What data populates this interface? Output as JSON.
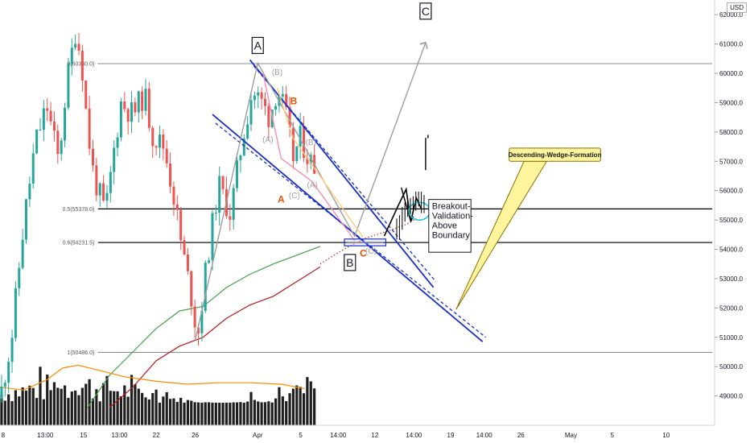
{
  "currency": "USD",
  "chart_data": {
    "type": "candlestick",
    "y_axis": {
      "side": "right",
      "ylim": [
        48000,
        62500
      ],
      "ticks": [
        "49000.0",
        "50000.0",
        "51000.0",
        "52000.0",
        "53000.0",
        "54000.0",
        "55000.0",
        "56000.0",
        "57000.0",
        "58000.0",
        "59000.0",
        "60000.0",
        "61000.0",
        "62000.0"
      ]
    },
    "x_axis": {
      "ticks": [
        {
          "label": "8",
          "t": 0.4
        },
        {
          "label": "13:00",
          "t": 5.8
        },
        {
          "label": "15",
          "t": 10.7
        },
        {
          "label": "13:00",
          "t": 15.3
        },
        {
          "label": "22",
          "t": 20.0
        },
        {
          "label": "26",
          "t": 25.0
        },
        {
          "label": "Apr",
          "t": 33.0
        },
        {
          "label": "5",
          "t": 38.5
        },
        {
          "label": "14:00",
          "t": 43.3
        },
        {
          "label": "12",
          "t": 48.0
        },
        {
          "label": "14:00",
          "t": 53.0
        },
        {
          "label": "19",
          "t": 57.7
        },
        {
          "label": "14:00",
          "t": 62.0
        },
        {
          "label": "26",
          "t": 66.7
        },
        {
          "label": "May",
          "t": 73.1
        },
        {
          "label": "5",
          "t": 78.4
        },
        {
          "label": "10",
          "t": 85.3
        }
      ]
    },
    "volume_colors": {
      "candle_up": "#26a69a",
      "candle_down": "#ef5350",
      "volume": "#1e1e1e"
    },
    "fib_levels": [
      {
        "label": "0(60330.0)",
        "value": 60330
      },
      {
        "label": "0.5(55378.0)",
        "value": 55378
      },
      {
        "label": "0.6(54231.5)",
        "value": 54231.5
      },
      {
        "label": "1(50486.0)",
        "value": 50486
      }
    ],
    "horizontal_lines": [
      55378,
      54231.5
    ],
    "wedge": {
      "upper": [
        [
          32.0,
          60460
        ],
        [
          55.5,
          52700
        ]
      ],
      "upper_dashed": [
        [
          32.5,
          60250
        ],
        [
          55.8,
          52900
        ]
      ],
      "lower": [
        [
          27.2,
          58600
        ],
        [
          61.8,
          50850
        ]
      ],
      "lower_dashed": [
        [
          27.6,
          58300
        ],
        [
          62.2,
          51000
        ]
      ],
      "color": "#1a2fc9"
    },
    "moving_averages": [
      {
        "color": "#43a047",
        "points": [
          [
            11.2,
            48600
          ],
          [
            14,
            49700
          ],
          [
            17,
            50500
          ],
          [
            20,
            51300
          ],
          [
            23,
            51900
          ],
          [
            26,
            52050
          ],
          [
            29,
            52700
          ],
          [
            32,
            53150
          ],
          [
            35,
            53500
          ],
          [
            38,
            53800
          ],
          [
            41,
            54100
          ]
        ]
      },
      {
        "color": "#b71c1c",
        "points": [
          [
            14,
            48600
          ],
          [
            17,
            49300
          ],
          [
            20,
            50200
          ],
          [
            23,
            50700
          ],
          [
            26,
            51000
          ],
          [
            29,
            51650
          ],
          [
            32,
            52100
          ],
          [
            35,
            52400
          ],
          [
            38,
            52900
          ],
          [
            41,
            53400
          ]
        ]
      },
      {
        "color": "#fb8c00",
        "points": [
          [
            0,
            49300
          ],
          [
            3,
            49200
          ],
          [
            6,
            49550
          ],
          [
            8,
            49950
          ],
          [
            10,
            50050
          ],
          [
            13,
            49850
          ],
          [
            16,
            49650
          ],
          [
            20,
            49500
          ],
          [
            24,
            49400
          ],
          [
            28,
            49450
          ],
          [
            32,
            49450
          ],
          [
            36,
            49400
          ],
          [
            39,
            49250
          ]
        ]
      }
    ],
    "projection_dotted": {
      "color": "#c62828",
      "points": [
        [
          41,
          53500
        ],
        [
          44,
          54000
        ],
        [
          47,
          54400
        ],
        [
          50,
          54650
        ],
        [
          52,
          54850
        ],
        [
          53.3,
          55050
        ]
      ]
    },
    "abc_lines": [
      {
        "color": "#9e9e9e",
        "points": [
          [
            25.0,
            50900
          ],
          [
            33.0,
            60350
          ],
          [
            45.4,
            54450
          ],
          [
            54.5,
            61050
          ]
        ]
      },
      {
        "color": "#000000",
        "points": [
          [
            49.2,
            54450
          ],
          [
            51.0,
            55500
          ],
          [
            52.0,
            56050
          ],
          [
            52.6,
            54950
          ],
          [
            53.3,
            55750
          ],
          [
            54.0,
            55350
          ]
        ]
      },
      {
        "color": "#f48fb1",
        "points": [
          [
            33.6,
            60100
          ],
          [
            36.0,
            57100
          ],
          [
            40.0,
            56300
          ],
          [
            45.4,
            54300
          ]
        ]
      },
      {
        "color": "#ffcc80",
        "points": [
          [
            35.5,
            59500
          ],
          [
            37.5,
            57800
          ],
          [
            41.5,
            56300
          ],
          [
            46.5,
            54400
          ]
        ]
      }
    ],
    "final_spikes": [
      [
        54.5,
        56700,
        57800
      ]
    ],
    "annotations": {
      "box_A": {
        "text": "A",
        "t": 33.0,
        "value": 60950
      },
      "box_B": {
        "text": "B",
        "t": 44.8,
        "value": 53550
      },
      "box_C": {
        "text": "C",
        "t": 54.5,
        "value": 62120
      },
      "orange_B": {
        "text": "B",
        "t": 37.6,
        "value": 58950
      },
      "orange_A": {
        "text": "A",
        "t": 36.0,
        "value": 55600
      },
      "orange_C": {
        "text": "C",
        "t": 46.5,
        "value": 53750
      },
      "small_B_top": {
        "text": "(B)",
        "t": 35.5,
        "value": 59950
      },
      "small_A_left": {
        "text": "(A)",
        "t": 34.3,
        "value": 57650
      },
      "small_B_mid": {
        "text": "(B)",
        "t": 39.8,
        "value": 57550
      },
      "small_A_low": {
        "text": "(A)",
        "t": 40.0,
        "value": 56100
      },
      "small_C_low": {
        "text": "(C)",
        "t": 37.7,
        "value": 55750
      },
      "small_C_bottom": {
        "text": "(C)",
        "t": 47.5,
        "value": 53850
      },
      "breakout_lines": [
        "Breakout-",
        "Validation-",
        "Above",
        "Boundary"
      ],
      "callout": "Descending-Wedge-Formation"
    }
  }
}
